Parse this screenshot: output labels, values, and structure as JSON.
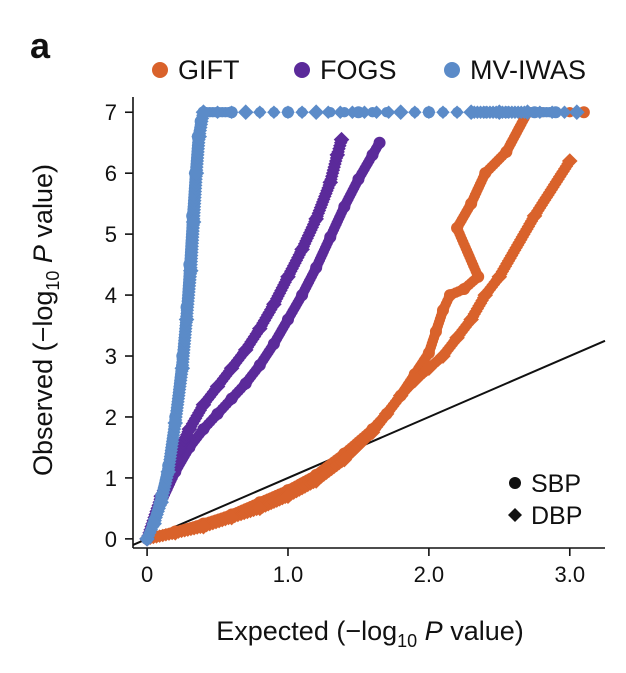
{
  "panel_label": "a",
  "chart_data": {
    "type": "scatter",
    "title": "",
    "xlabel": {
      "pre": "Expected (−log",
      "sub": "10",
      "italic": "P",
      "post": " value)"
    },
    "ylabel": {
      "pre": "Observed (−log",
      "sub": "10",
      "italic": "P",
      "post": " value)"
    },
    "xlim": [
      -0.1,
      3.25
    ],
    "ylim": [
      -0.15,
      7.25
    ],
    "x_ticks": [
      {
        "value": 0,
        "label": "0"
      },
      {
        "value": 1,
        "label": "1.0"
      },
      {
        "value": 2,
        "label": "2.0"
      },
      {
        "value": 3,
        "label": "3.0"
      }
    ],
    "y_ticks": [
      {
        "value": 0,
        "label": "0"
      },
      {
        "value": 1,
        "label": "1"
      },
      {
        "value": 2,
        "label": "2"
      },
      {
        "value": 3,
        "label": "3"
      },
      {
        "value": 4,
        "label": "4"
      },
      {
        "value": 5,
        "label": "5"
      },
      {
        "value": 6,
        "label": "6"
      },
      {
        "value": 7,
        "label": "7"
      }
    ],
    "grid": false,
    "reference_line": {
      "from": [
        -0.1,
        -0.1
      ],
      "to": [
        3.25,
        3.25
      ],
      "color": "#111111"
    },
    "legend_series": [
      {
        "name": "GIFT",
        "color": "#D9622B"
      },
      {
        "name": "FOGS",
        "color": "#5B2A9A"
      },
      {
        "name": "MV-IWAS",
        "color": "#5B8BC8"
      }
    ],
    "legend_shapes": [
      {
        "name": "SBP",
        "shape": "circle"
      },
      {
        "name": "DBP",
        "shape": "diamond"
      }
    ],
    "legend_placement": "series legend top; shape legend bottom-right",
    "series": [
      {
        "name": "MV-IWAS",
        "trait": "SBP",
        "color": "#5B8BC8",
        "shape": "circle",
        "points": [
          [
            0,
            0
          ],
          [
            0.05,
            0.3
          ],
          [
            0.1,
            0.7
          ],
          [
            0.15,
            1.2
          ],
          [
            0.2,
            2.0
          ],
          [
            0.25,
            3.0
          ],
          [
            0.28,
            3.8
          ],
          [
            0.3,
            4.5
          ],
          [
            0.32,
            5.3
          ],
          [
            0.34,
            6.0
          ],
          [
            0.36,
            6.6
          ],
          [
            0.38,
            6.85
          ],
          [
            0.4,
            7.0
          ],
          [
            0.6,
            7.0
          ],
          [
            1.0,
            7.0
          ],
          [
            1.5,
            7.0
          ],
          [
            2.0,
            7.0
          ],
          [
            2.4,
            7.0
          ],
          [
            2.55,
            7.0
          ],
          [
            2.75,
            7.0
          ],
          [
            2.9,
            7.0
          ]
        ]
      },
      {
        "name": "MV-IWAS",
        "trait": "DBP",
        "color": "#5B8BC8",
        "shape": "diamond",
        "points": [
          [
            0,
            0
          ],
          [
            0.05,
            0.25
          ],
          [
            0.1,
            0.6
          ],
          [
            0.15,
            1.1
          ],
          [
            0.2,
            1.9
          ],
          [
            0.25,
            2.8
          ],
          [
            0.28,
            3.6
          ],
          [
            0.31,
            4.4
          ],
          [
            0.33,
            5.2
          ],
          [
            0.35,
            6.0
          ],
          [
            0.37,
            6.6
          ],
          [
            0.4,
            7.0
          ],
          [
            0.7,
            7.0
          ],
          [
            1.2,
            7.0
          ],
          [
            1.8,
            7.0
          ],
          [
            2.3,
            7.0
          ],
          [
            2.5,
            7.0
          ],
          [
            2.7,
            7.0
          ],
          [
            3.05,
            7.0
          ]
        ]
      },
      {
        "name": "FOGS",
        "trait": "SBP",
        "color": "#5B2A9A",
        "shape": "circle",
        "points": [
          [
            0,
            0
          ],
          [
            0.1,
            0.6
          ],
          [
            0.2,
            1.1
          ],
          [
            0.3,
            1.5
          ],
          [
            0.4,
            1.8
          ],
          [
            0.5,
            2.05
          ],
          [
            0.6,
            2.3
          ],
          [
            0.7,
            2.55
          ],
          [
            0.8,
            2.85
          ],
          [
            0.9,
            3.2
          ],
          [
            1.0,
            3.6
          ],
          [
            1.1,
            4.0
          ],
          [
            1.2,
            4.45
          ],
          [
            1.3,
            4.95
          ],
          [
            1.4,
            5.45
          ],
          [
            1.5,
            5.9
          ],
          [
            1.6,
            6.3
          ],
          [
            1.65,
            6.5
          ]
        ]
      },
      {
        "name": "FOGS",
        "trait": "DBP",
        "color": "#5B2A9A",
        "shape": "diamond",
        "points": [
          [
            0,
            0
          ],
          [
            0.1,
            0.7
          ],
          [
            0.2,
            1.3
          ],
          [
            0.3,
            1.8
          ],
          [
            0.4,
            2.2
          ],
          [
            0.5,
            2.5
          ],
          [
            0.6,
            2.8
          ],
          [
            0.7,
            3.1
          ],
          [
            0.8,
            3.45
          ],
          [
            0.9,
            3.85
          ],
          [
            1.0,
            4.3
          ],
          [
            1.1,
            4.75
          ],
          [
            1.2,
            5.25
          ],
          [
            1.3,
            5.85
          ],
          [
            1.35,
            6.3
          ],
          [
            1.38,
            6.55
          ]
        ]
      },
      {
        "name": "GIFT",
        "trait": "SBP",
        "color": "#D9622B",
        "shape": "circle",
        "points": [
          [
            0,
            0
          ],
          [
            0.2,
            0.12
          ],
          [
            0.4,
            0.25
          ],
          [
            0.6,
            0.4
          ],
          [
            0.8,
            0.6
          ],
          [
            1.0,
            0.8
          ],
          [
            1.2,
            1.05
          ],
          [
            1.4,
            1.4
          ],
          [
            1.6,
            1.8
          ],
          [
            1.7,
            2.05
          ],
          [
            1.8,
            2.35
          ],
          [
            1.9,
            2.7
          ],
          [
            2.0,
            3.05
          ],
          [
            2.05,
            3.4
          ],
          [
            2.1,
            3.75
          ],
          [
            2.15,
            4.0
          ],
          [
            2.25,
            4.1
          ],
          [
            2.35,
            4.3
          ],
          [
            2.2,
            5.1
          ],
          [
            2.3,
            5.5
          ],
          [
            2.4,
            6.0
          ],
          [
            2.55,
            6.35
          ],
          [
            2.7,
            7.0
          ],
          [
            3.1,
            7.0
          ]
        ]
      },
      {
        "name": "GIFT",
        "trait": "DBP",
        "color": "#D9622B",
        "shape": "diamond",
        "points": [
          [
            0,
            0
          ],
          [
            0.2,
            0.1
          ],
          [
            0.4,
            0.2
          ],
          [
            0.6,
            0.35
          ],
          [
            0.8,
            0.5
          ],
          [
            1.0,
            0.7
          ],
          [
            1.2,
            0.95
          ],
          [
            1.4,
            1.3
          ],
          [
            1.6,
            1.75
          ],
          [
            1.7,
            2.05
          ],
          [
            1.8,
            2.35
          ],
          [
            1.9,
            2.6
          ],
          [
            2.0,
            2.8
          ],
          [
            2.1,
            3.0
          ],
          [
            2.2,
            3.3
          ],
          [
            2.3,
            3.6
          ],
          [
            2.4,
            4.0
          ],
          [
            2.5,
            4.3
          ],
          [
            2.75,
            5.3
          ],
          [
            3.0,
            6.2
          ]
        ]
      }
    ]
  }
}
